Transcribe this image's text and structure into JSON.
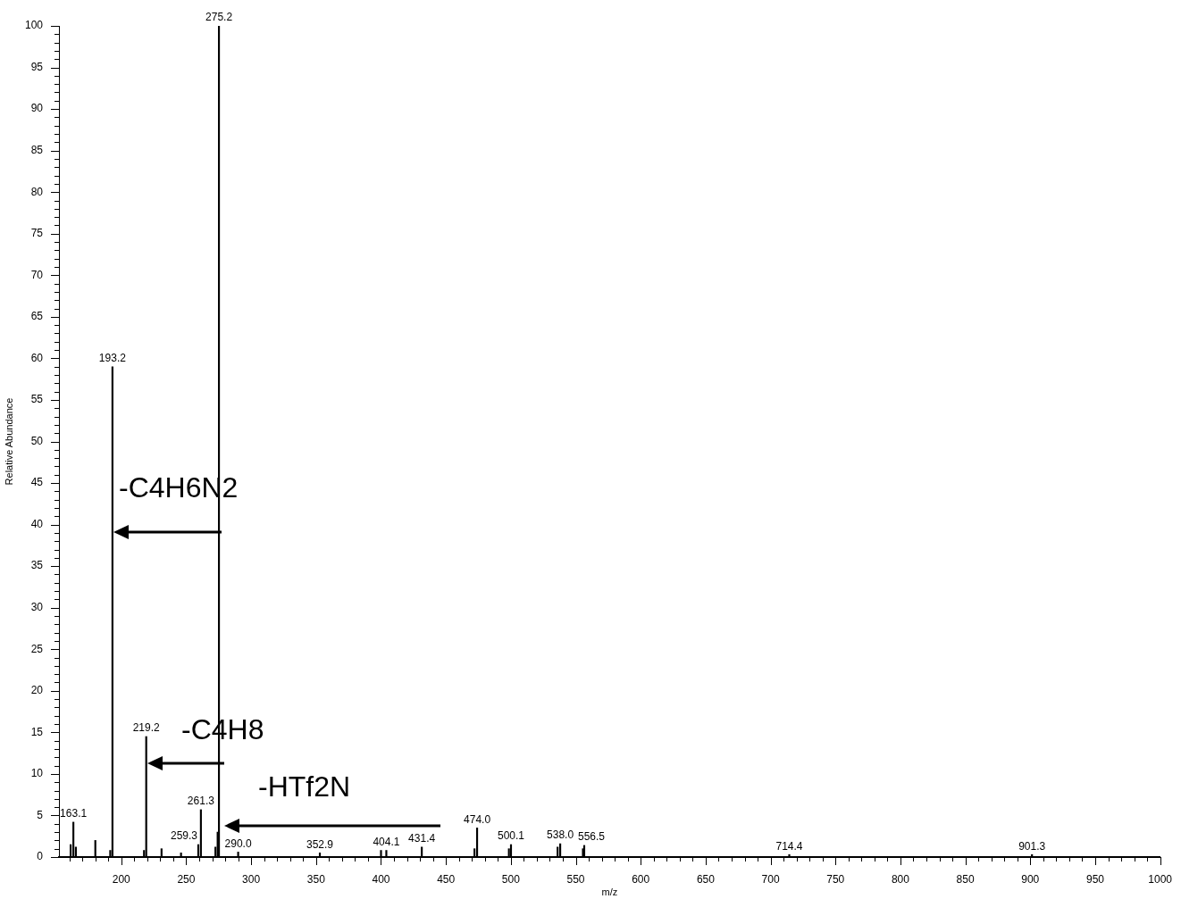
{
  "chart_data": {
    "type": "bar",
    "xlabel": "m/z",
    "ylabel": "Relative Abundance",
    "color": "#000000",
    "x": [
      161.0,
      163.1,
      165.0,
      180.0,
      191.5,
      193.2,
      217.5,
      219.2,
      231.0,
      246.0,
      259.3,
      261.3,
      272.5,
      274.2,
      275.2,
      290.0,
      352.9,
      400.0,
      404.1,
      431.4,
      472.0,
      474.0,
      498.5,
      500.1,
      536.0,
      538.0,
      555.5,
      556.5,
      714.4,
      901.3
    ],
    "values": [
      1.5,
      4.2,
      1.2,
      2.0,
      0.8,
      59.0,
      0.8,
      14.5,
      1.0,
      0.5,
      1.5,
      5.7,
      1.2,
      3.0,
      100,
      0.6,
      0.5,
      0.8,
      0.8,
      1.2,
      1.0,
      3.5,
      1.0,
      1.5,
      1.2,
      1.6,
      1.0,
      1.4,
      0.3,
      0.3
    ],
    "xlim": [
      152,
      1000
    ],
    "xticks": [
      {
        "value": 160,
        "label": null
      },
      {
        "value": 170,
        "label": null
      },
      {
        "value": 180,
        "label": null
      },
      {
        "value": 190,
        "label": null
      },
      200,
      {
        "value": 210,
        "label": null
      },
      {
        "value": 220,
        "label": null
      },
      {
        "value": 230,
        "label": null
      },
      {
        "value": 240,
        "label": null
      },
      250,
      {
        "value": 260,
        "label": null
      },
      {
        "value": 270,
        "label": null
      },
      {
        "value": 280,
        "label": null
      },
      {
        "value": 290,
        "label": null
      },
      300,
      {
        "value": 310,
        "label": null
      },
      {
        "value": 320,
        "label": null
      },
      {
        "value": 330,
        "label": null
      },
      {
        "value": 340,
        "label": null
      },
      350,
      {
        "value": 360,
        "label": null
      },
      {
        "value": 370,
        "label": null
      },
      {
        "value": 380,
        "label": null
      },
      {
        "value": 390,
        "label": null
      },
      400,
      {
        "value": 410,
        "label": null
      },
      {
        "value": 420,
        "label": null
      },
      {
        "value": 430,
        "label": null
      },
      {
        "value": 440,
        "label": null
      },
      450,
      {
        "value": 460,
        "label": null
      },
      {
        "value": 470,
        "label": null
      },
      {
        "value": 480,
        "label": null
      },
      {
        "value": 490,
        "label": null
      },
      500,
      {
        "value": 510,
        "label": null
      },
      {
        "value": 520,
        "label": null
      },
      {
        "value": 530,
        "label": null
      },
      {
        "value": 540,
        "label": null
      },
      550,
      {
        "value": 560,
        "label": null
      },
      {
        "value": 570,
        "label": null
      },
      {
        "value": 580,
        "label": null
      },
      {
        "value": 590,
        "label": null
      },
      600,
      {
        "value": 610,
        "label": null
      },
      {
        "value": 620,
        "label": null
      },
      {
        "value": 630,
        "label": null
      },
      {
        "value": 640,
        "label": null
      },
      650,
      {
        "value": 660,
        "label": null
      },
      {
        "value": 670,
        "label": null
      },
      {
        "value": 680,
        "label": null
      },
      {
        "value": 690,
        "label": null
      },
      700,
      {
        "value": 710,
        "label": null
      },
      {
        "value": 720,
        "label": null
      },
      {
        "value": 730,
        "label": null
      },
      {
        "value": 740,
        "label": null
      },
      750,
      {
        "value": 760,
        "label": null
      },
      {
        "value": 770,
        "label": null
      },
      {
        "value": 780,
        "label": null
      },
      {
        "value": 790,
        "label": null
      },
      800,
      {
        "value": 810,
        "label": null
      },
      {
        "value": 820,
        "label": null
      },
      {
        "value": 830,
        "label": null
      },
      {
        "value": 840,
        "label": null
      },
      850,
      {
        "value": 860,
        "label": null
      },
      {
        "value": 870,
        "label": null
      },
      {
        "value": 880,
        "label": null
      },
      {
        "value": 890,
        "label": null
      },
      900,
      {
        "value": 910,
        "label": null
      },
      {
        "value": 920,
        "label": null
      },
      {
        "value": 930,
        "label": null
      },
      {
        "value": 940,
        "label": null
      },
      950,
      {
        "value": 960,
        "label": null
      },
      {
        "value": 970,
        "label": null
      },
      {
        "value": 980,
        "label": null
      },
      {
        "value": 990,
        "label": null
      },
      1000
    ],
    "ylim": [
      0,
      100
    ],
    "yticks": [
      0,
      {
        "value": 1,
        "label": null
      },
      {
        "value": 2,
        "label": null
      },
      {
        "value": 3,
        "label": null
      },
      {
        "value": 4,
        "label": null
      },
      5,
      {
        "value": 6,
        "label": null
      },
      {
        "value": 7,
        "label": null
      },
      {
        "value": 8,
        "label": null
      },
      {
        "value": 9,
        "label": null
      },
      10,
      {
        "value": 11,
        "label": null
      },
      {
        "value": 12,
        "label": null
      },
      {
        "value": 13,
        "label": null
      },
      {
        "value": 14,
        "label": null
      },
      15,
      {
        "value": 16,
        "label": null
      },
      {
        "value": 17,
        "label": null
      },
      {
        "value": 18,
        "label": null
      },
      {
        "value": 19,
        "label": null
      },
      20,
      {
        "value": 21,
        "label": null
      },
      {
        "value": 22,
        "label": null
      },
      {
        "value": 23,
        "label": null
      },
      {
        "value": 24,
        "label": null
      },
      25,
      {
        "value": 26,
        "label": null
      },
      {
        "value": 27,
        "label": null
      },
      {
        "value": 28,
        "label": null
      },
      {
        "value": 29,
        "label": null
      },
      30,
      {
        "value": 31,
        "label": null
      },
      {
        "value": 32,
        "label": null
      },
      {
        "value": 33,
        "label": null
      },
      {
        "value": 34,
        "label": null
      },
      35,
      {
        "value": 36,
        "label": null
      },
      {
        "value": 37,
        "label": null
      },
      {
        "value": 38,
        "label": null
      },
      {
        "value": 39,
        "label": null
      },
      40,
      {
        "value": 41,
        "label": null
      },
      {
        "value": 42,
        "label": null
      },
      {
        "value": 43,
        "label": null
      },
      {
        "value": 44,
        "label": null
      },
      45,
      {
        "value": 46,
        "label": null
      },
      {
        "value": 47,
        "label": null
      },
      {
        "value": 48,
        "label": null
      },
      {
        "value": 49,
        "label": null
      },
      50,
      {
        "value": 51,
        "label": null
      },
      {
        "value": 52,
        "label": null
      },
      {
        "value": 53,
        "label": null
      },
      {
        "value": 54,
        "label": null
      },
      55,
      {
        "value": 56,
        "label": null
      },
      {
        "value": 57,
        "label": null
      },
      {
        "value": 58,
        "label": null
      },
      {
        "value": 59,
        "label": null
      },
      60,
      {
        "value": 61,
        "label": null
      },
      {
        "value": 62,
        "label": null
      },
      {
        "value": 63,
        "label": null
      },
      {
        "value": 64,
        "label": null
      },
      65,
      {
        "value": 66,
        "label": null
      },
      {
        "value": 67,
        "label": null
      },
      {
        "value": 68,
        "label": null
      },
      {
        "value": 69,
        "label": null
      },
      70,
      {
        "value": 71,
        "label": null
      },
      {
        "value": 72,
        "label": null
      },
      {
        "value": 73,
        "label": null
      },
      {
        "value": 74,
        "label": null
      },
      75,
      {
        "value": 76,
        "label": null
      },
      {
        "value": 77,
        "label": null
      },
      {
        "value": 78,
        "label": null
      },
      {
        "value": 79,
        "label": null
      },
      80,
      {
        "value": 81,
        "label": null
      },
      {
        "value": 82,
        "label": null
      },
      {
        "value": 83,
        "label": null
      },
      {
        "value": 84,
        "label": null
      },
      85,
      {
        "value": 86,
        "label": null
      },
      {
        "value": 87,
        "label": null
      },
      {
        "value": 88,
        "label": null
      },
      {
        "value": 89,
        "label": null
      },
      90,
      {
        "value": 91,
        "label": null
      },
      {
        "value": 92,
        "label": null
      },
      {
        "value": 93,
        "label": null
      },
      {
        "value": 94,
        "label": null
      },
      95,
      {
        "value": 96,
        "label": null
      },
      {
        "value": 97,
        "label": null
      },
      {
        "value": 98,
        "label": null
      },
      {
        "value": 99,
        "label": null
      },
      100
    ],
    "annotations": [
      "-C4H6N2",
      "-C4H8",
      "-HTf2N",
      {
        "text": "163.1",
        "x": 163.1,
        "y": 4.2
      },
      {
        "text": "193.2",
        "x": 193.2,
        "y": 59.0
      },
      {
        "text": "219.2",
        "x": 219.2,
        "y": 14.5
      },
      {
        "text": "259.3",
        "x": 259.3,
        "y": 1.5
      },
      {
        "text": "261.3",
        "x": 261.3,
        "y": 5.7
      },
      {
        "text": "275.2",
        "x": 275.2,
        "y": 100
      },
      {
        "text": "290.0",
        "x": 290.0,
        "y": 0.6
      },
      {
        "text": "352.9",
        "x": 352.9,
        "y": 0.5
      },
      {
        "text": "404.1",
        "x": 404.1,
        "y": 0.8
      },
      {
        "text": "431.4",
        "x": 431.4,
        "y": 1.2
      },
      {
        "text": "474.0",
        "x": 474.0,
        "y": 3.5
      },
      {
        "text": "500.1",
        "x": 500.1,
        "y": 1.5
      },
      {
        "text": "538.0",
        "x": 538.0,
        "y": 1.6
      },
      {
        "text": "556.5",
        "x": 556.5,
        "y": 1.4
      },
      {
        "text": "714.4",
        "x": 714.4,
        "y": 0.3
      },
      {
        "text": "901.3",
        "x": 901.3,
        "y": 0.3
      }
    ],
    "grid": false,
    "legend": false
  }
}
